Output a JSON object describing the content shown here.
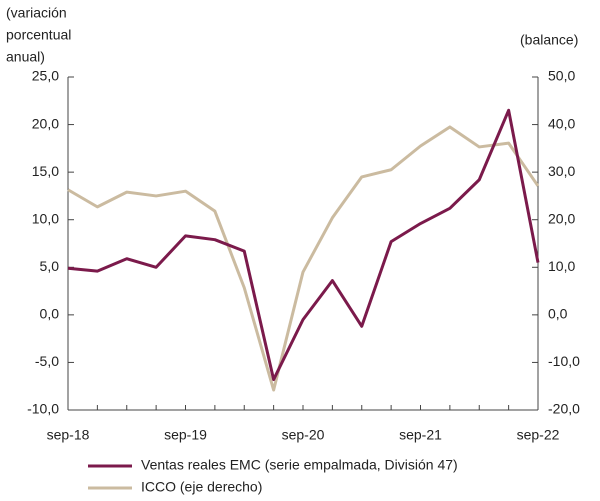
{
  "chart_data": {
    "type": "line",
    "y_label": [
      "(variación",
      "porcentual",
      "anual)"
    ],
    "y2_label": "(balance)",
    "categories": [
      "sep-18",
      null,
      null,
      null,
      "sep-19",
      null,
      null,
      null,
      "sep-20",
      null,
      null,
      null,
      "sep-21",
      null,
      null,
      null,
      "sep-22"
    ],
    "series": [
      {
        "name": "Ventas reales EMC (serie empalmada, División 47)",
        "color": "#7b1a4b",
        "values": [
          4.9,
          4.6,
          5.9,
          5.0,
          8.3,
          7.9,
          6.7,
          -6.8,
          -0.5,
          3.6,
          -1.2,
          7.7,
          9.6,
          11.2,
          14.2,
          21.5,
          5.5
        ]
      },
      {
        "name": "ICCO (eje derecho)",
        "color": "#cbbba0",
        "axis": "y2",
        "values": [
          26.3,
          22.7,
          25.8,
          25.0,
          26.0,
          21.8,
          5.7,
          -15.8,
          9.0,
          20.4,
          29.0,
          30.5,
          35.5,
          39.5,
          35.3,
          36.1,
          27.1
        ]
      }
    ],
    "ylim": [
      -10,
      25
    ],
    "yticks": [
      {
        "value": -10,
        "label": "-10,0"
      },
      {
        "value": -5,
        "label": "-5,0"
      },
      {
        "value": 0,
        "label": "0,0"
      },
      {
        "value": 5,
        "label": "5,0"
      },
      {
        "value": 10,
        "label": "10,0"
      },
      {
        "value": 15,
        "label": "15,0"
      },
      {
        "value": 20,
        "label": "20,0"
      },
      {
        "value": 25,
        "label": "25,0"
      }
    ],
    "y2lim": [
      -20,
      50
    ],
    "y2ticks": [
      {
        "value": -20,
        "label": "-20,0"
      },
      {
        "value": -10,
        "label": "-10,0"
      },
      {
        "value": 0,
        "label": "0,0"
      },
      {
        "value": 10,
        "label": "10,0"
      },
      {
        "value": 20,
        "label": "20,0"
      },
      {
        "value": 30,
        "label": "30,0"
      },
      {
        "value": 40,
        "label": "40,0"
      },
      {
        "value": 50,
        "label": "50,0"
      }
    ],
    "grid": false
  }
}
